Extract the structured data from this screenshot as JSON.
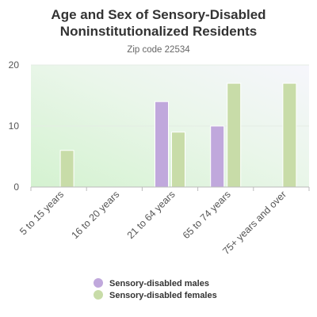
{
  "chart_data": {
    "type": "bar",
    "title": "Age and Sex of Sensory-Disabled Noninstitutionalized Residents",
    "title_lines": [
      "Age and Sex of Sensory-Disabled",
      "Noninstitutionalized Residents"
    ],
    "subtitle": "Zip code 22534",
    "categories": [
      "5 to 15 years",
      "16 to 20 years",
      "21 to 64 years",
      "65 to 74 years",
      "75+ years and over"
    ],
    "series": [
      {
        "name": "Sensory-disabled males",
        "color": "#c0a8dc",
        "values": [
          0,
          0,
          14,
          10,
          0
        ]
      },
      {
        "name": "Sensory-disabled females",
        "color": "#c8dca8",
        "values": [
          6,
          0,
          9,
          17,
          17
        ]
      }
    ],
    "ylim": [
      0,
      20
    ],
    "yticks": [
      0,
      10,
      20
    ],
    "xlabel": "",
    "ylabel": "",
    "grid": true,
    "legend_position": "bottom"
  }
}
